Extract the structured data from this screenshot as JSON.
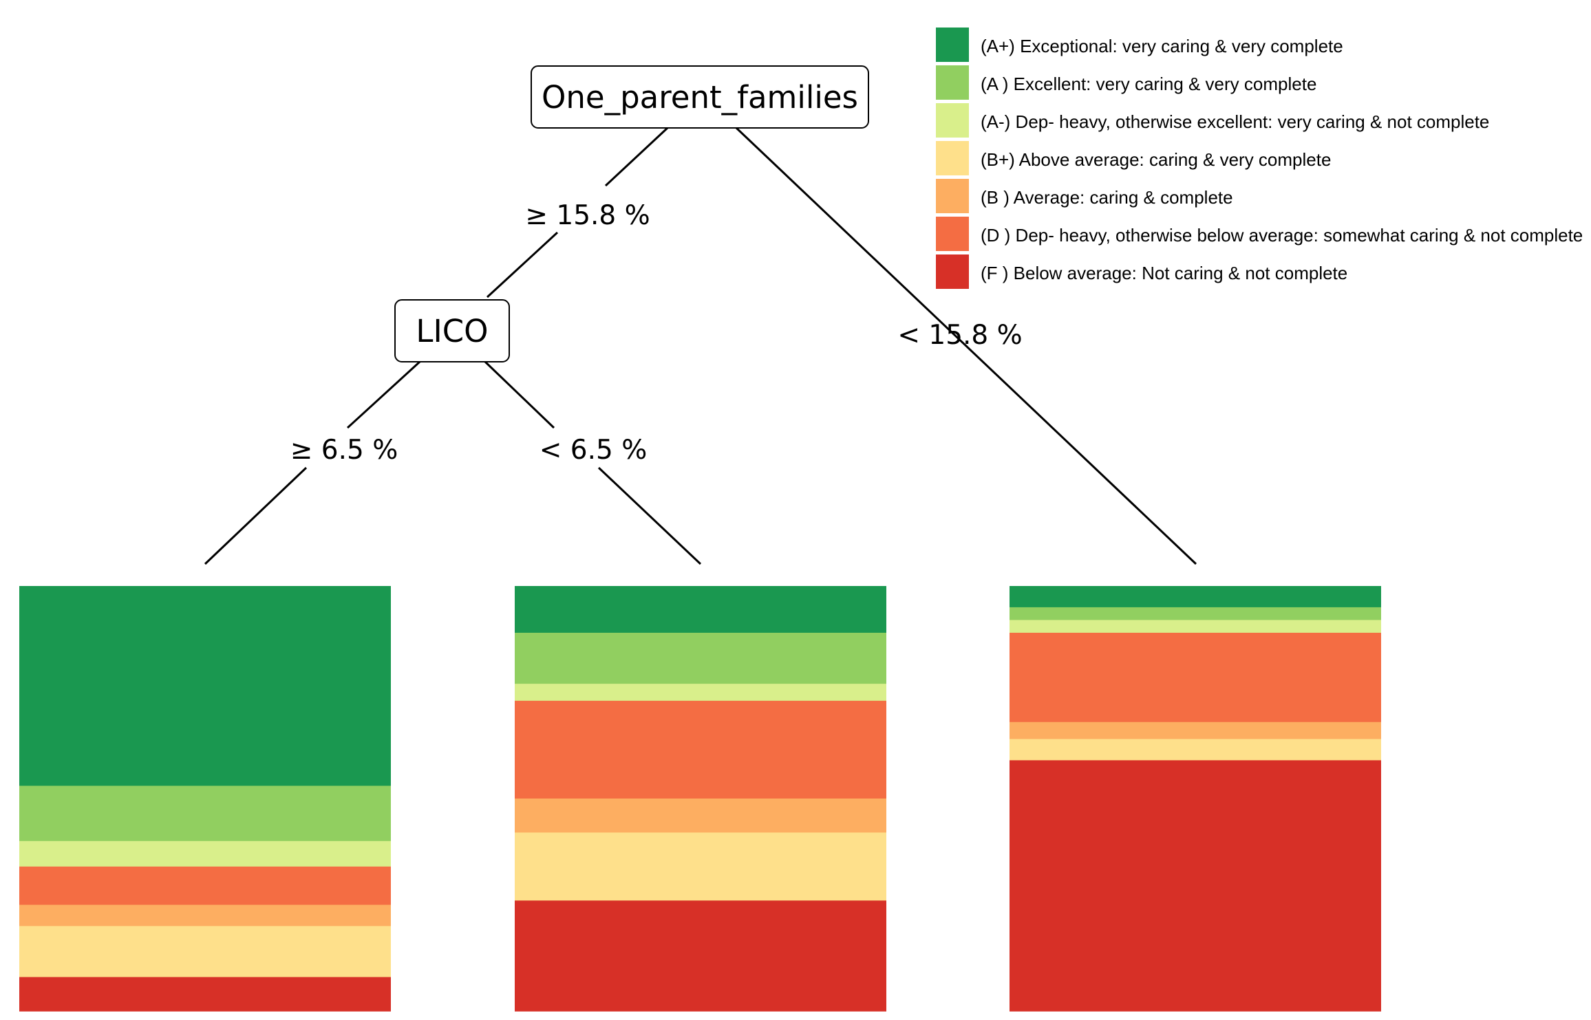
{
  "tree": {
    "root": {
      "label": "One_parent_families",
      "left_edge": "≥ 15.8 %",
      "right_edge": "< 15.8 %"
    },
    "child": {
      "label": "LICO",
      "left_edge": "≥ 6.5 %",
      "right_edge": "< 6.5 %"
    }
  },
  "legend": [
    {
      "key": "A+",
      "label": "(A+) Exceptional: very caring & very complete",
      "color": "#1a9850"
    },
    {
      "key": "A",
      "label": "(A ) Excellent: very caring & very complete",
      "color": "#91cf60"
    },
    {
      "key": "A-",
      "label": "(A-) Dep- heavy, otherwise excellent: very caring & not complete",
      "color": "#d9ef8b"
    },
    {
      "key": "B+",
      "label": "(B+) Above average: caring & very complete",
      "color": "#fee08b"
    },
    {
      "key": "B",
      "label": "(B ) Average: caring & complete",
      "color": "#fdae61"
    },
    {
      "key": "D",
      "label": "(D ) Dep- heavy, otherwise below average: somewhat caring & not complete",
      "color": "#f46d43"
    },
    {
      "key": "F",
      "label": "(F ) Below average: Not caring & not complete",
      "color": "#d73027"
    }
  ],
  "chart_data": {
    "type": "bar",
    "stacked": true,
    "orientation": "vertical",
    "categories": [
      "One_parent_families ≥ 15.8 %, LICO ≥ 6.5 %",
      "One_parent_families ≥ 15.8 %, LICO < 6.5 %",
      "One_parent_families < 15.8 %"
    ],
    "stack_order_top_to_bottom": [
      "A+",
      "A",
      "A-",
      "D",
      "B",
      "B+",
      "F"
    ],
    "series": [
      {
        "name": "(A+) Exceptional: very caring & very complete",
        "values": [
          0.47,
          0.11,
          0.05
        ]
      },
      {
        "name": "(A ) Excellent: very caring & very complete",
        "values": [
          0.13,
          0.12,
          0.03
        ]
      },
      {
        "name": "(A-) Dep- heavy, otherwise excellent: very caring & not complete",
        "values": [
          0.06,
          0.04,
          0.03
        ]
      },
      {
        "name": "(D ) Dep- heavy, otherwise below average: somewhat caring & not complete",
        "values": [
          0.09,
          0.23,
          0.21
        ]
      },
      {
        "name": "(B ) Average: caring & complete",
        "values": [
          0.05,
          0.08,
          0.04
        ]
      },
      {
        "name": "(B+) Above average: caring & very complete",
        "values": [
          0.12,
          0.16,
          0.05
        ]
      },
      {
        "name": "(F ) Below average: Not caring & not complete",
        "values": [
          0.08,
          0.26,
          0.59
        ]
      }
    ],
    "grid": false,
    "legend_position": "top-right"
  }
}
